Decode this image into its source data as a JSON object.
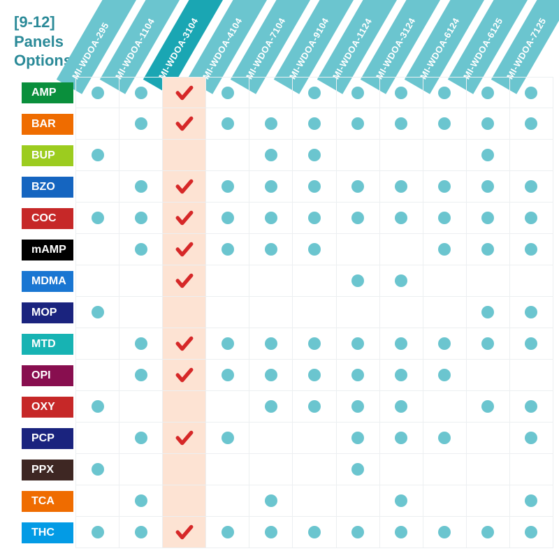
{
  "title_lines": [
    "[9-12]",
    "Panels",
    "Options"
  ],
  "title_color": "#2b8a98",
  "highlight_col_index": 2,
  "highlight_bg": "#fde3d3",
  "dot_color": "#6bc5cf",
  "check_color": "#d62828",
  "header_band_normal": "#6bc5cf",
  "header_band_highlight": "#1aa6b3",
  "grid_line_color": "#eceff1",
  "columns": [
    "MI-WDOA-295",
    "MI-WDOA-1104",
    "MI-WDOA-3104",
    "MI-WDOA-4104",
    "MI-WDOA-7104",
    "MI-WDOA-9104",
    "MI-WDOA-1124",
    "MI-WDOA-3124",
    "MI-WDOA-6124",
    "MI-WDOA-6125",
    "MI-WDOA-7125"
  ],
  "rows": [
    {
      "label": "AMP",
      "color": "#0a8f3c",
      "cells": [
        "dot",
        "dot",
        "check",
        "dot",
        "",
        "dot",
        "dot",
        "dot",
        "dot",
        "dot",
        "dot"
      ]
    },
    {
      "label": "BAR",
      "color": "#ef6c00",
      "cells": [
        "",
        "dot",
        "check",
        "dot",
        "dot",
        "dot",
        "dot",
        "dot",
        "dot",
        "dot",
        "dot"
      ]
    },
    {
      "label": "BUP",
      "color": "#9ccc1f",
      "cells": [
        "dot",
        "",
        "",
        "",
        "dot",
        "dot",
        "",
        "",
        "",
        "dot",
        ""
      ]
    },
    {
      "label": "BZO",
      "color": "#1565c0",
      "cells": [
        "",
        "dot",
        "check",
        "dot",
        "dot",
        "dot",
        "dot",
        "dot",
        "dot",
        "dot",
        "dot"
      ]
    },
    {
      "label": "COC",
      "color": "#c62828",
      "cells": [
        "dot",
        "dot",
        "check",
        "dot",
        "dot",
        "dot",
        "dot",
        "dot",
        "dot",
        "dot",
        "dot"
      ]
    },
    {
      "label": "mAMP",
      "color": "#000000",
      "cells": [
        "",
        "dot",
        "check",
        "dot",
        "dot",
        "dot",
        "",
        "",
        "dot",
        "dot",
        "dot"
      ]
    },
    {
      "label": "MDMA",
      "color": "#1976d2",
      "cells": [
        "",
        "",
        "check",
        "",
        "",
        "",
        "dot",
        "dot",
        "",
        "",
        ""
      ]
    },
    {
      "label": "MOP",
      "color": "#1a237e",
      "cells": [
        "dot",
        "",
        "",
        "",
        "",
        "",
        "",
        "",
        "",
        "dot",
        "dot"
      ]
    },
    {
      "label": "MTD",
      "color": "#17b3b3",
      "cells": [
        "",
        "dot",
        "check",
        "dot",
        "dot",
        "dot",
        "dot",
        "dot",
        "dot",
        "dot",
        "dot"
      ]
    },
    {
      "label": "OPI",
      "color": "#880e4f",
      "cells": [
        "",
        "dot",
        "check",
        "dot",
        "dot",
        "dot",
        "dot",
        "dot",
        "dot",
        "",
        ""
      ]
    },
    {
      "label": "OXY",
      "color": "#c62828",
      "cells": [
        "dot",
        "",
        "",
        "",
        "dot",
        "dot",
        "dot",
        "dot",
        "",
        "dot",
        "dot"
      ]
    },
    {
      "label": "PCP",
      "color": "#1a237e",
      "cells": [
        "",
        "dot",
        "check",
        "dot",
        "",
        "",
        "dot",
        "dot",
        "dot",
        "",
        "dot"
      ]
    },
    {
      "label": "PPX",
      "color": "#3e2723",
      "cells": [
        "dot",
        "",
        "",
        "",
        "",
        "",
        "dot",
        "",
        "",
        "",
        ""
      ]
    },
    {
      "label": "TCA",
      "color": "#ef6c00",
      "cells": [
        "",
        "dot",
        "",
        "",
        "dot",
        "",
        "",
        "dot",
        "",
        "",
        "dot"
      ]
    },
    {
      "label": "THC",
      "color": "#039be5",
      "cells": [
        "dot",
        "dot",
        "check",
        "dot",
        "dot",
        "dot",
        "dot",
        "dot",
        "dot",
        "dot",
        "dot"
      ]
    }
  ]
}
